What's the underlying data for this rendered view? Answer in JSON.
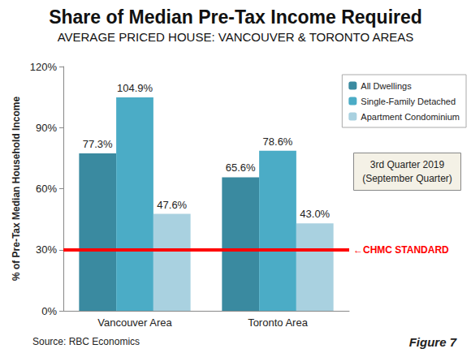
{
  "chart_data": {
    "type": "bar",
    "title": "Share of Median Pre-Tax Income Required",
    "subtitle": "AVERAGE PRICED HOUSE: VANCOUVER & TORONTO AREAS",
    "y_label": "% of Pre-Tax Median Household Income",
    "categories": [
      "Vancouver Area",
      "Toronto Area"
    ],
    "series": [
      {
        "name": "All Dwellings",
        "color": "#3a8aa0",
        "values": [
          77.3,
          65.6
        ],
        "value_labels": [
          "77.3%",
          "65.6%"
        ]
      },
      {
        "name": "Single-Family Detached",
        "color": "#4bacc6",
        "values": [
          104.9,
          78.6
        ],
        "value_labels": [
          "104.9%",
          "78.6%"
        ]
      },
      {
        "name": "Apartment Condominium",
        "color": "#a9d1e0",
        "values": [
          47.6,
          43.0
        ],
        "value_labels": [
          "47.6%",
          "43.0%"
        ]
      }
    ],
    "ylim": [
      0,
      120
    ],
    "yticks": [
      {
        "value": 0,
        "label": "0%"
      },
      {
        "value": 30,
        "label": "30%"
      },
      {
        "value": 60,
        "label": "60%"
      },
      {
        "value": 90,
        "label": "90%"
      },
      {
        "value": 120,
        "label": "120%"
      }
    ],
    "grid": false,
    "legend": "upper right",
    "data_labels": true,
    "reference_line": {
      "value": 30,
      "label": "←CHMC STANDARD",
      "color": "#ff0000"
    },
    "annotation": [
      "3rd Quarter 2019",
      "(September Quarter)"
    ],
    "source": "Source: RBC Economics",
    "figure_label": "Figure 7"
  }
}
